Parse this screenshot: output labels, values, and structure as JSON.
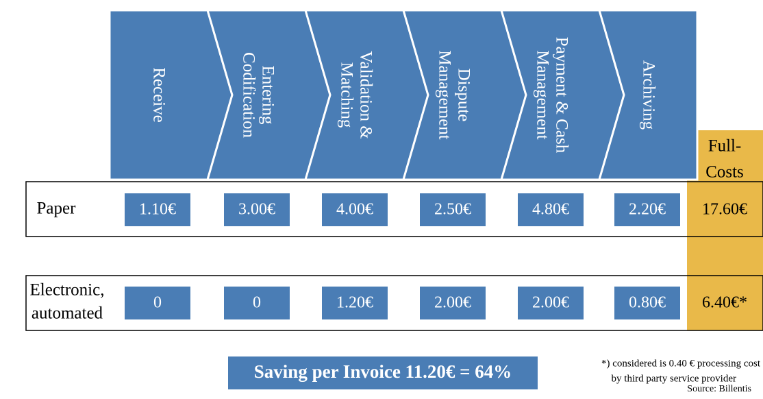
{
  "stages": [
    {
      "lines": [
        "Receive"
      ]
    },
    {
      "lines": [
        "Entering",
        "Codification"
      ]
    },
    {
      "lines": [
        "Validation &",
        "Matching"
      ]
    },
    {
      "lines": [
        "Dispute",
        "Management"
      ]
    },
    {
      "lines": [
        "Payment & Cash",
        "Management"
      ]
    },
    {
      "lines": [
        "Archiving"
      ]
    }
  ],
  "full_costs_header": [
    "Full-",
    "Costs"
  ],
  "rows": [
    {
      "label": [
        "Paper"
      ],
      "values": [
        "1.10€",
        "3.00€",
        "4.00€",
        "2.50€",
        "4.80€",
        "2.20€"
      ],
      "full_cost": "17.60€"
    },
    {
      "label": [
        "Electronic,",
        "automated"
      ],
      "values": [
        "0",
        "0",
        "1.20€",
        "2.00€",
        "2.00€",
        "0.80€"
      ],
      "full_cost": "6.40€*"
    }
  ],
  "saving": "Saving per Invoice 11.20€ = 64%",
  "footnote": [
    "*) considered is 0.40 € processing cost",
    "by third party service provider"
  ],
  "source": "Source: Billentis"
}
